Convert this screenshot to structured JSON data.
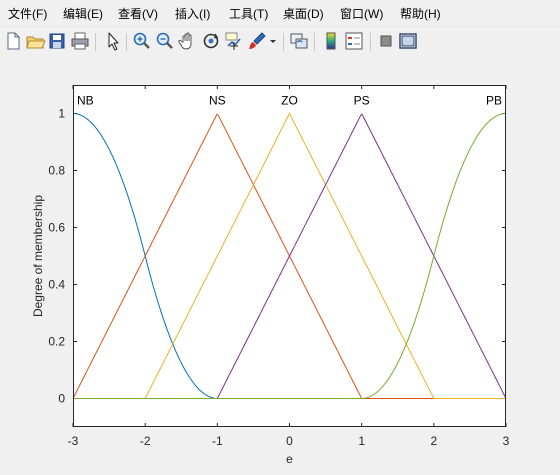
{
  "menu": [
    {
      "label": "文件(F)"
    },
    {
      "label": "编辑(E)"
    },
    {
      "label": "查看(V)"
    },
    {
      "label": "插入(I)"
    },
    {
      "label": "工具(T)"
    },
    {
      "label": "桌面(D)"
    },
    {
      "label": "窗口(W)"
    },
    {
      "label": "帮助(H)"
    }
  ],
  "toolbar": [
    {
      "icon": "new-file-icon"
    },
    {
      "icon": "open-folder-icon"
    },
    {
      "icon": "save-icon"
    },
    {
      "icon": "print-icon"
    },
    {
      "icon": "pointer-icon"
    },
    {
      "icon": "zoom-in-icon"
    },
    {
      "icon": "zoom-out-icon"
    },
    {
      "icon": "pan-hand-icon"
    },
    {
      "icon": "rotate-3d-icon"
    },
    {
      "icon": "data-cursor-icon"
    },
    {
      "icon": "brush-icon"
    },
    {
      "icon": "link-plot-icon"
    },
    {
      "icon": "colorbar-icon"
    },
    {
      "icon": "legend-icon"
    },
    {
      "icon": "hide-plot-tools-icon"
    },
    {
      "icon": "show-plot-tools-icon"
    }
  ],
  "chart_data": {
    "type": "line",
    "xlabel": "e",
    "ylabel": "Degree of membership",
    "xlim": [
      -3,
      3
    ],
    "ylim": [
      -0.1,
      1.1
    ],
    "xticks": [
      "-3",
      "-2",
      "-1",
      "0",
      "1",
      "2",
      "3"
    ],
    "yticks": [
      "0",
      "0.2",
      "0.4",
      "0.6",
      "0.8",
      "1"
    ],
    "grid": false,
    "series": [
      {
        "name": "NB",
        "shape": "z-shaped",
        "params": [
          -3,
          -1
        ],
        "color": "#0072bd"
      },
      {
        "name": "NS",
        "shape": "triangular",
        "params": [
          -3,
          -1,
          1
        ],
        "color": "#d95319"
      },
      {
        "name": "ZO",
        "shape": "triangular",
        "params": [
          -2,
          0,
          2
        ],
        "color": "#edb120"
      },
      {
        "name": "PS",
        "shape": "triangular",
        "params": [
          -1,
          1,
          3
        ],
        "color": "#7e2f8e"
      },
      {
        "name": "PB",
        "shape": "s-shaped",
        "params": [
          1,
          3
        ],
        "color": "#77ac30"
      }
    ]
  }
}
